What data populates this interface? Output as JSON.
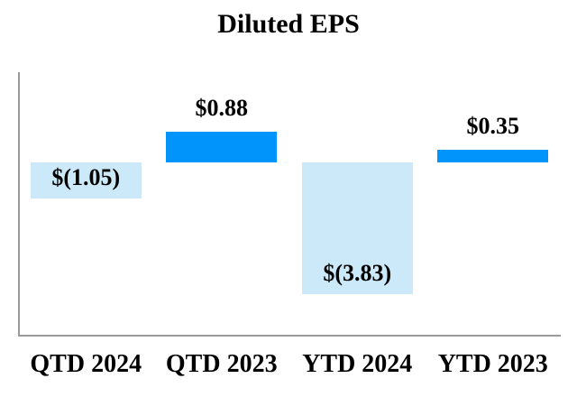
{
  "title": "Diluted EPS",
  "colors": {
    "positive_bar": "#0195FC",
    "negative_bar": "#CCE9FA",
    "axis_line": "#999999",
    "text": "#000000",
    "background": "#FFFFFF"
  },
  "chart_data": {
    "type": "bar",
    "title": "Diluted EPS",
    "categories": [
      "QTD 2024",
      "QTD 2023",
      "YTD 2024",
      "YTD 2023"
    ],
    "values": [
      -1.05,
      0.88,
      -3.83,
      0.35
    ],
    "data_labels": [
      "$(1.05)",
      "$0.88",
      "$(3.83)",
      "$0.35"
    ],
    "xlabel": "",
    "ylabel": "",
    "ylim": [
      -5,
      2.6
    ],
    "grid": false,
    "legend": "none",
    "y_axis_ticks": [],
    "label_position": {
      "positive": "outside-end-above",
      "negative": "inside-end-bottom"
    }
  }
}
